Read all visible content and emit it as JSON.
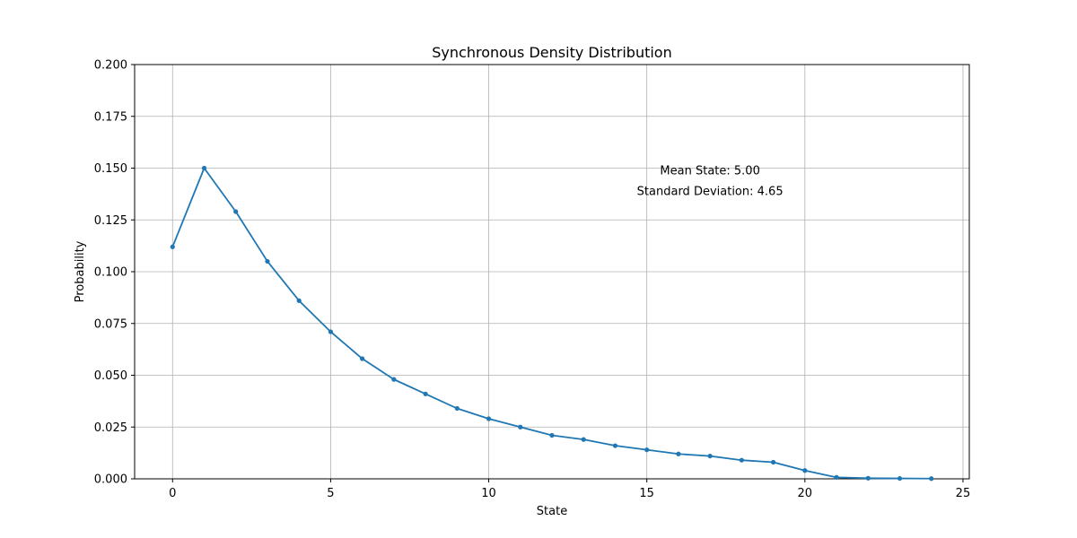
{
  "chart_data": {
    "type": "line",
    "title": "Synchronous Density Distribution",
    "xlabel": "State",
    "ylabel": "Probability",
    "xlim": [
      -1.2,
      25.2
    ],
    "ylim": [
      0,
      0.2
    ],
    "xticks": [
      0,
      5,
      10,
      15,
      20,
      25
    ],
    "xtick_labels": [
      "0",
      "5",
      "10",
      "15",
      "20",
      "25"
    ],
    "yticks": [
      0,
      0.025,
      0.05,
      0.075,
      0.1,
      0.125,
      0.15,
      0.175,
      0.2
    ],
    "ytick_labels": [
      "0.000",
      "0.025",
      "0.050",
      "0.075",
      "0.100",
      "0.125",
      "0.150",
      "0.175",
      "0.200"
    ],
    "grid": true,
    "series": [
      {
        "color": "#1f77b4",
        "marker": "circle",
        "x": [
          0,
          1,
          2,
          3,
          4,
          5,
          6,
          7,
          8,
          9,
          10,
          11,
          12,
          13,
          14,
          15,
          16,
          17,
          18,
          19,
          20,
          21,
          22,
          23,
          24
        ],
        "y": [
          0.112,
          0.15,
          0.129,
          0.105,
          0.086,
          0.071,
          0.058,
          0.048,
          0.041,
          0.034,
          0.029,
          0.025,
          0.021,
          0.019,
          0.016,
          0.014,
          0.012,
          0.011,
          0.009,
          0.008,
          0.004,
          0.0007,
          0.0003,
          0.0002,
          0.0001
        ]
      }
    ],
    "annotations": [
      {
        "text": "Mean State: 5.00",
        "x": 17.0,
        "y": 0.147
      },
      {
        "text": "Standard Deviation: 4.65",
        "x": 17.0,
        "y": 0.137
      }
    ]
  }
}
